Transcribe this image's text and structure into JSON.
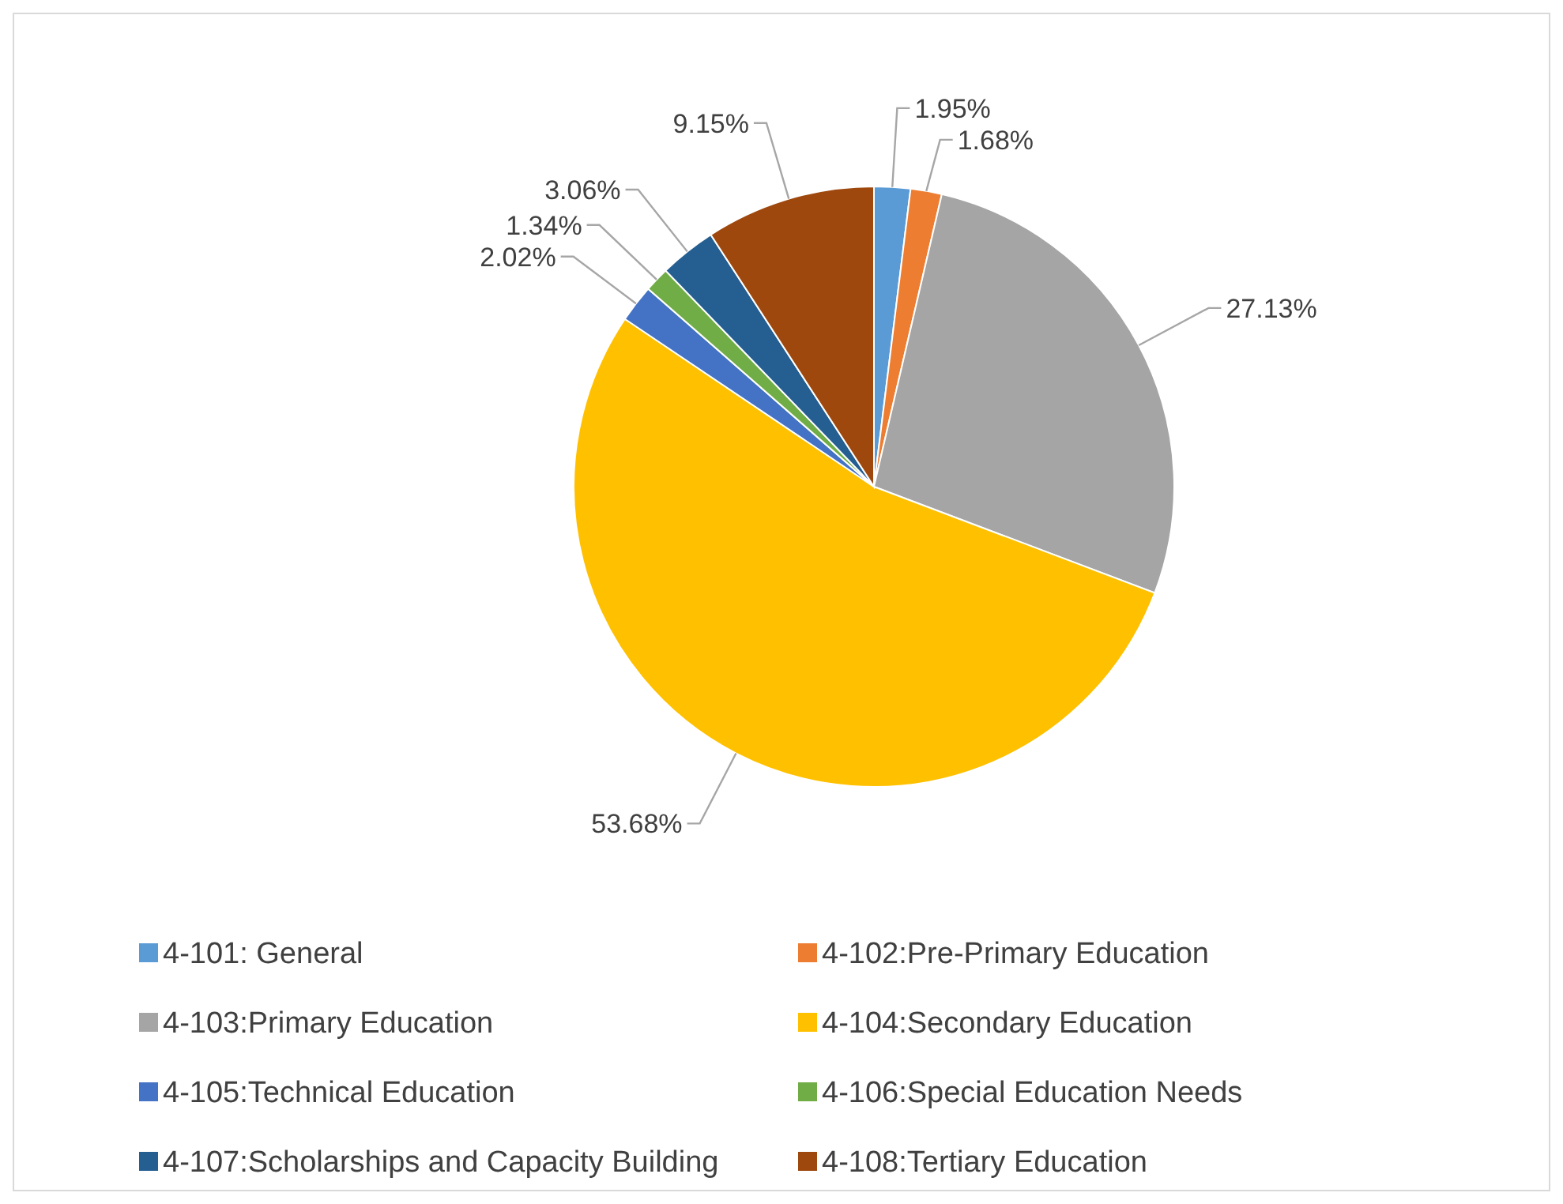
{
  "chart_data": {
    "type": "pie",
    "categories": [
      "4-101: General",
      "4-102:Pre-Primary Education",
      "4-103:Primary Education",
      "4-104:Secondary Education",
      "4-105:Technical Education",
      "4-106:Special Education Needs",
      "4-107:Scholarships and Capacity Building",
      "4-108:Tertiary Education"
    ],
    "values": [
      1.95,
      1.68,
      27.13,
      53.68,
      2.02,
      1.34,
      3.06,
      9.15
    ],
    "value_labels": [
      "1.95%",
      "1.68%",
      "27.13%",
      "53.68%",
      "2.02%",
      "1.34%",
      "3.06%",
      "9.15%"
    ],
    "colors": [
      "#5b9bd5",
      "#ed7d31",
      "#a5a5a5",
      "#ffc000",
      "#4472c4",
      "#70ad47",
      "#255e91",
      "#9e480e"
    ],
    "legend": "bottom"
  }
}
